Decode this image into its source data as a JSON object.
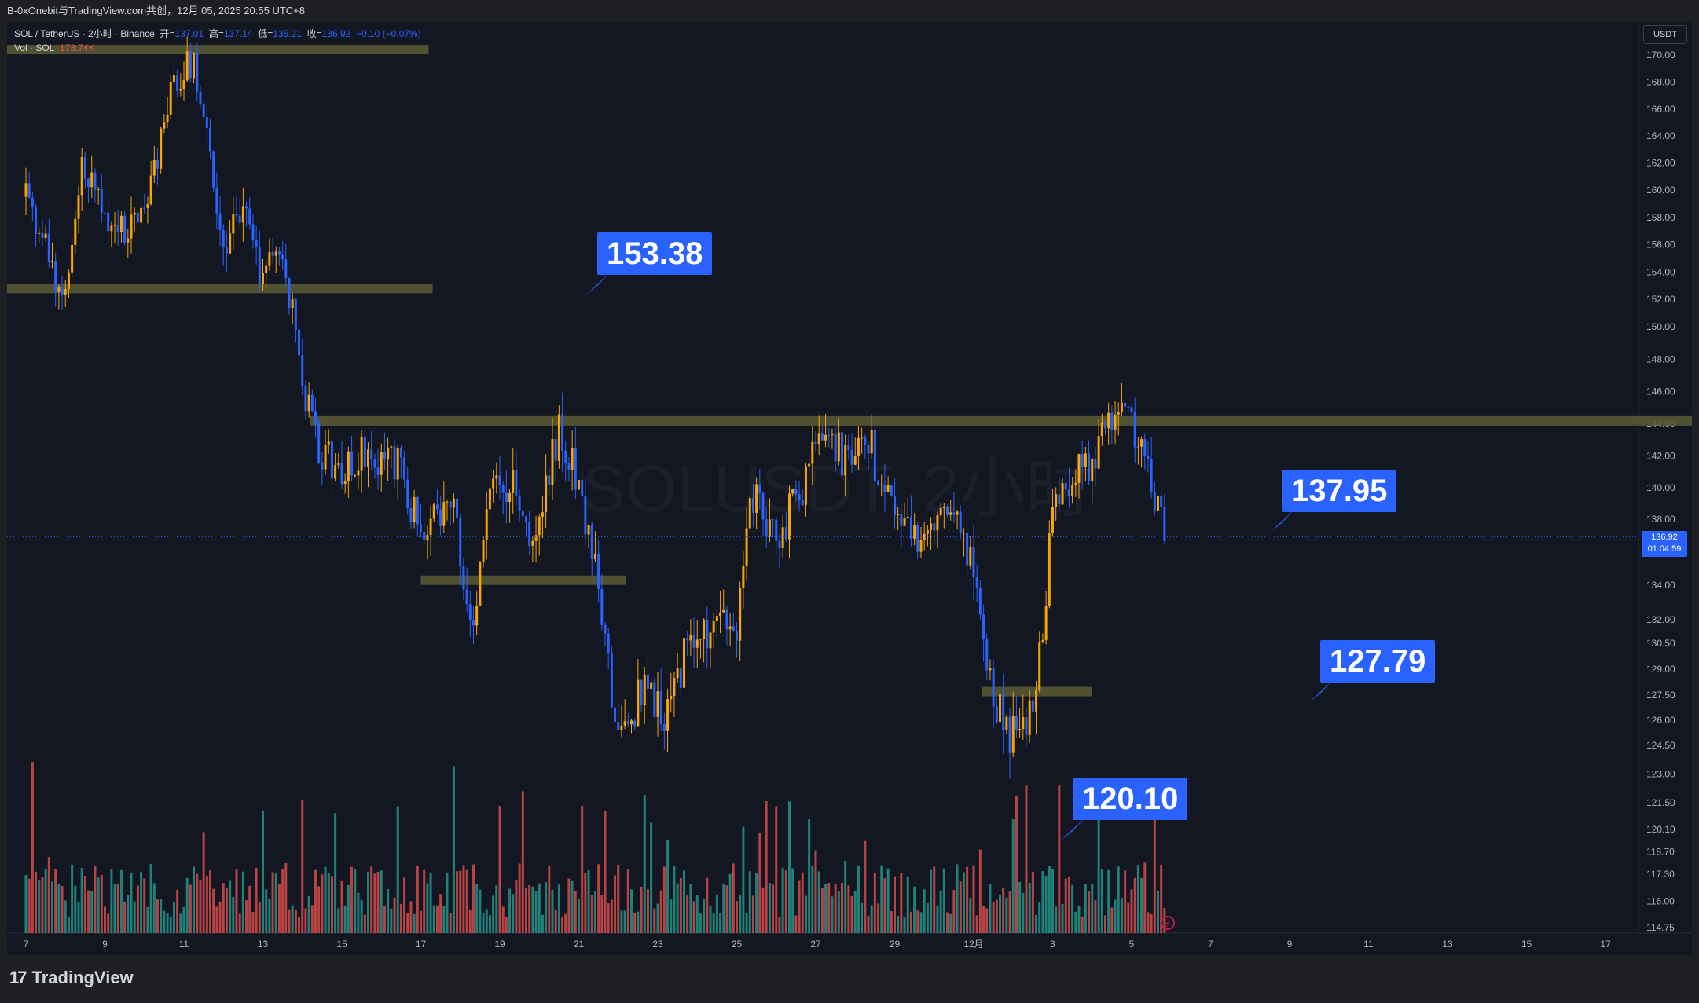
{
  "header": {
    "title": "B-0xOnebit与TradingView.com共创，12月 05, 2025 20:55 UTC+8"
  },
  "legend": {
    "symbol": "SOL / TetherUS · 2小时 · Binance",
    "open_label": "开=",
    "open": "137.01",
    "high_label": "高=",
    "high": "137.14",
    "low_label": "低=",
    "low": "135.21",
    "close_label": "收=",
    "close": "136.92",
    "change": "−0.10 (−0.07%)",
    "vol_label": "Vol · SOL",
    "vol_value": "173.74K"
  },
  "watermark": "SOLUSDT, 2小时",
  "currency": "USDT",
  "last_price": {
    "price": "136.92",
    "countdown": "01:04:59"
  },
  "brand": {
    "name": "TradingView",
    "mark": "17"
  },
  "callouts": [
    {
      "label": "153.38"
    },
    {
      "label": "137.95"
    },
    {
      "label": "127.79"
    },
    {
      "label": "120.10"
    }
  ],
  "colors": {
    "up": "#f7a600",
    "down": "#2962ff",
    "vol_up": "#26a69a",
    "vol_down": "#ef5350",
    "zone": "#5c5a35",
    "callout": "#2962ff"
  },
  "chart_data": {
    "type": "candlestick",
    "y_axis_ticks": [
      "170.00",
      "168.00",
      "166.00",
      "164.00",
      "162.00",
      "160.00",
      "158.00",
      "156.00",
      "154.00",
      "152.00",
      "150.00",
      "148.00",
      "146.00",
      "144.00",
      "142.00",
      "140.00",
      "138.00",
      "134.00",
      "132.00",
      "130.50",
      "129.00",
      "127.50",
      "126.00",
      "124.50",
      "123.00",
      "121.50",
      "120.10",
      "118.70",
      "117.30",
      "116.00",
      "114.75"
    ],
    "x_axis_ticks": [
      "7",
      "9",
      "11",
      "13",
      "15",
      "17",
      "19",
      "21",
      "23",
      "25",
      "27",
      "29",
      "12月",
      "3",
      "5",
      "7",
      "9",
      "11",
      "13",
      "15",
      "17"
    ],
    "price_path": [
      {
        "day": 7.0,
        "price": 159.5
      },
      {
        "day": 7.6,
        "price": 155.0
      },
      {
        "day": 8.0,
        "price": 151.5
      },
      {
        "day": 8.4,
        "price": 162.5
      },
      {
        "day": 9.0,
        "price": 158.0
      },
      {
        "day": 9.6,
        "price": 157.0
      },
      {
        "day": 10.2,
        "price": 160.5
      },
      {
        "day": 10.8,
        "price": 168.5
      },
      {
        "day": 11.2,
        "price": 169.5
      },
      {
        "day": 11.5,
        "price": 166.0
      },
      {
        "day": 12.0,
        "price": 156.0
      },
      {
        "day": 12.5,
        "price": 158.5
      },
      {
        "day": 12.9,
        "price": 154.0
      },
      {
        "day": 13.5,
        "price": 155.5
      },
      {
        "day": 14.0,
        "price": 147.0
      },
      {
        "day": 14.3,
        "price": 143.0
      },
      {
        "day": 15.0,
        "price": 140.5
      },
      {
        "day": 15.6,
        "price": 142.5
      },
      {
        "day": 16.4,
        "price": 141.5
      },
      {
        "day": 17.0,
        "price": 137.0
      },
      {
        "day": 17.8,
        "price": 140.0
      },
      {
        "day": 18.3,
        "price": 131.0
      },
      {
        "day": 18.8,
        "price": 140.5
      },
      {
        "day": 19.4,
        "price": 140.0
      },
      {
        "day": 19.9,
        "price": 136.0
      },
      {
        "day": 20.5,
        "price": 144.0
      },
      {
        "day": 21.1,
        "price": 139.0
      },
      {
        "day": 21.5,
        "price": 133.5
      },
      {
        "day": 22.0,
        "price": 125.0
      },
      {
        "day": 22.7,
        "price": 128.0
      },
      {
        "day": 23.2,
        "price": 126.5
      },
      {
        "day": 23.8,
        "price": 130.5
      },
      {
        "day": 24.6,
        "price": 131.5
      },
      {
        "day": 25.0,
        "price": 131.0
      },
      {
        "day": 25.4,
        "price": 139.5
      },
      {
        "day": 26.0,
        "price": 137.0
      },
      {
        "day": 26.6,
        "price": 139.5
      },
      {
        "day": 27.2,
        "price": 144.0
      },
      {
        "day": 27.8,
        "price": 141.5
      },
      {
        "day": 28.4,
        "price": 142.5
      },
      {
        "day": 29.0,
        "price": 137.5
      },
      {
        "day": 29.9,
        "price": 136.5
      },
      {
        "day": 30.5,
        "price": 139.5
      },
      {
        "day": 31.2,
        "price": 132.0
      },
      {
        "day": 31.5,
        "price": 127.0
      },
      {
        "day": 32.0,
        "price": 125.0
      },
      {
        "day": 32.6,
        "price": 127.5
      },
      {
        "day": 33.0,
        "price": 138.5
      },
      {
        "day": 33.5,
        "price": 140.5
      },
      {
        "day": 34.0,
        "price": 141.5
      },
      {
        "day": 34.6,
        "price": 145.5
      },
      {
        "day": 35.2,
        "price": 143.0
      },
      {
        "day": 35.6,
        "price": 139.5
      },
      {
        "day": 35.85,
        "price": 136.9
      }
    ],
    "zones": [
      {
        "price": 170.4,
        "day_start": 6.0,
        "day_end": 17.2
      },
      {
        "price": 152.8,
        "day_start": 6.0,
        "day_end": 17.3
      },
      {
        "price": 144.2,
        "day_start": 14.2,
        "day_end": 50.6
      },
      {
        "price": 134.3,
        "day_start": 17.0,
        "day_end": 22.2
      },
      {
        "price": 127.7,
        "day_start": 31.2,
        "day_end": 34.0
      }
    ],
    "annotations": [
      {
        "label": "153.38",
        "price": 153.38
      },
      {
        "label": "137.95",
        "price": 137.95
      },
      {
        "label": "127.79",
        "price": 127.79
      },
      {
        "label": "120.10",
        "price": 120.1
      }
    ]
  }
}
